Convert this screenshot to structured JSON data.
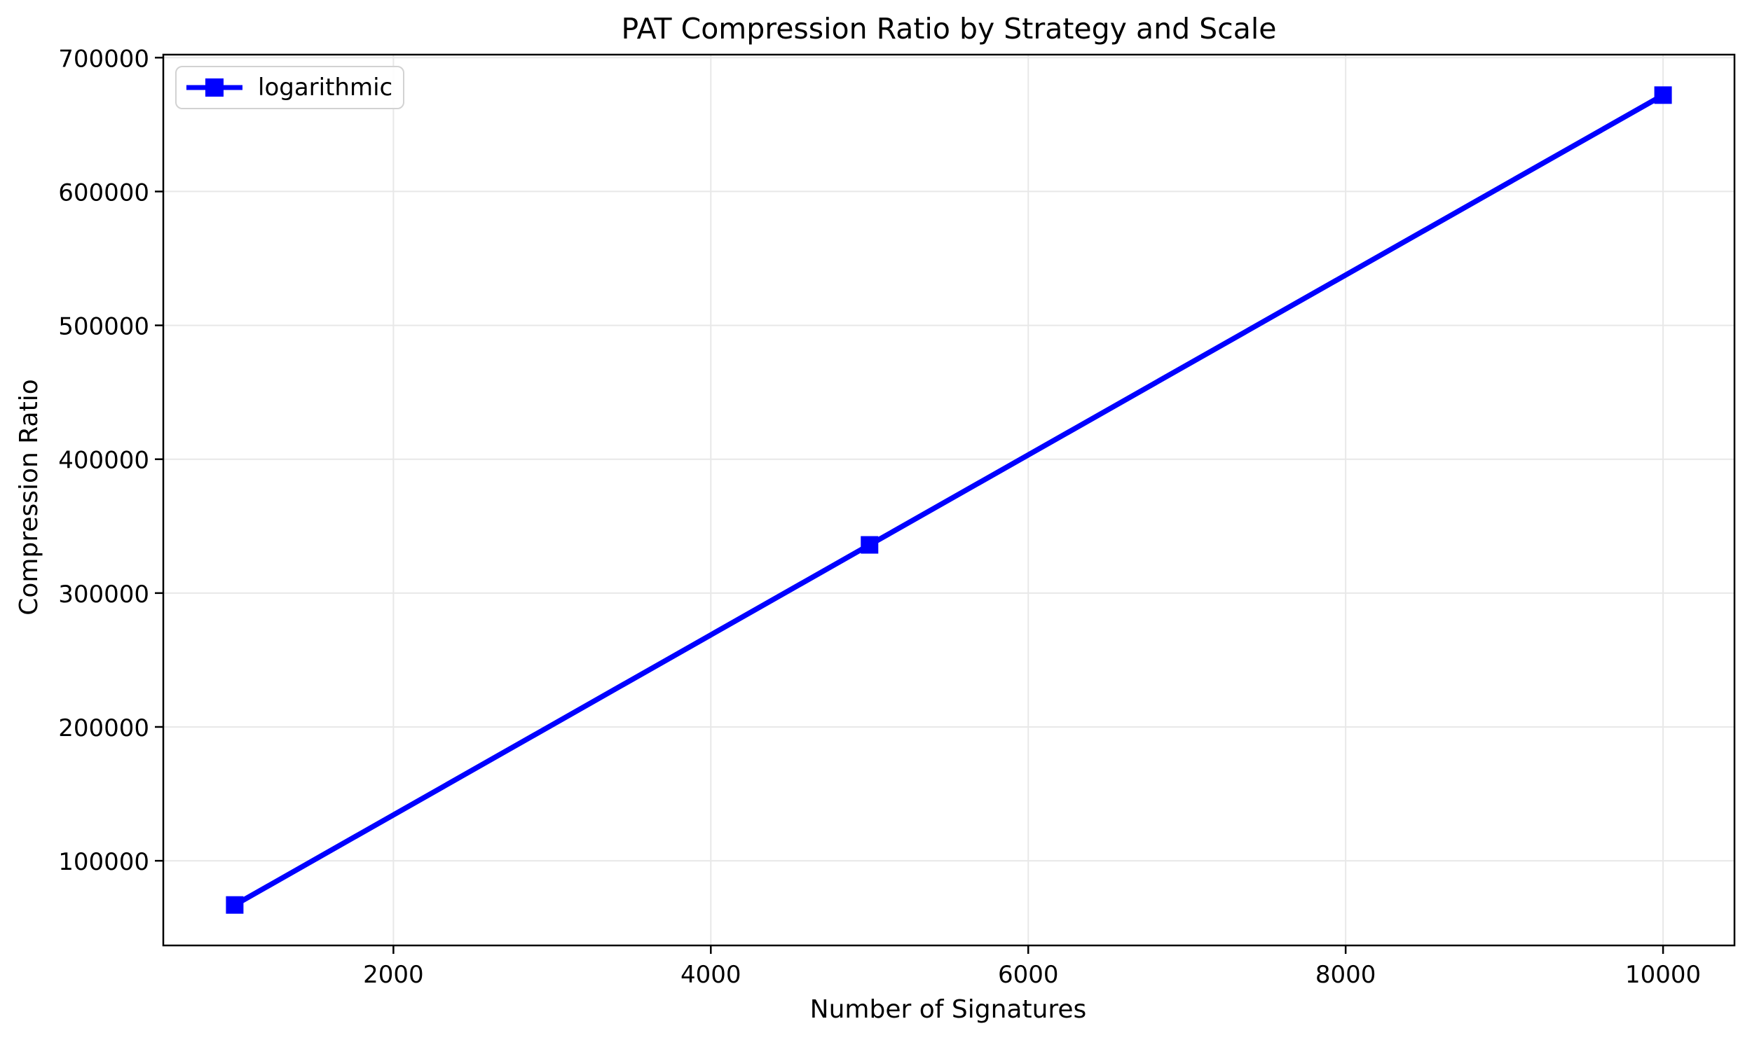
{
  "figure": {
    "background": "#ffffff"
  },
  "chart_data": {
    "type": "line",
    "title": "PAT Compression Ratio by Strategy and Scale",
    "xlabel": "Number of Signatures",
    "ylabel": "Compression Ratio",
    "series": [
      {
        "name": "logarithmic",
        "color": "#0000ff",
        "marker": "square",
        "x": [
          1000,
          5000,
          10000
        ],
        "y": [
          67000,
          336000,
          672000
        ]
      }
    ],
    "xticks": [
      2000,
      4000,
      6000,
      8000,
      10000
    ],
    "xtick_labels": [
      "2000",
      "4000",
      "6000",
      "8000",
      "10000"
    ],
    "yticks": [
      100000,
      200000,
      300000,
      400000,
      500000,
      600000,
      700000
    ],
    "ytick_labels": [
      "100000",
      "200000",
      "300000",
      "400000",
      "500000",
      "600000",
      "700000"
    ],
    "xlim": [
      550,
      10450
    ],
    "ylim": [
      36750,
      702250
    ],
    "grid": true,
    "legend_position": "upper left",
    "colors": {
      "grid": "#e8e8e8",
      "spine": "#000000",
      "text": "#000000",
      "legend_border": "#d2d2d2"
    }
  }
}
